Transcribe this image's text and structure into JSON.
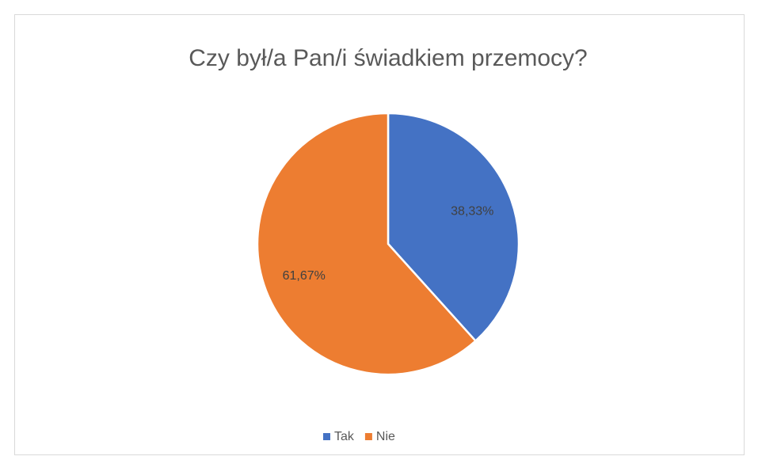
{
  "chart_data": {
    "type": "pie",
    "title": "Czy był/a Pan/i świadkiem przemocy?",
    "categories": [
      "Tak",
      "Nie"
    ],
    "values": [
      38.33,
      61.67
    ],
    "value_labels": [
      "38,33%",
      "61,67%"
    ],
    "colors": [
      "#4472c4",
      "#ed7d31"
    ],
    "legend": "bottom"
  }
}
